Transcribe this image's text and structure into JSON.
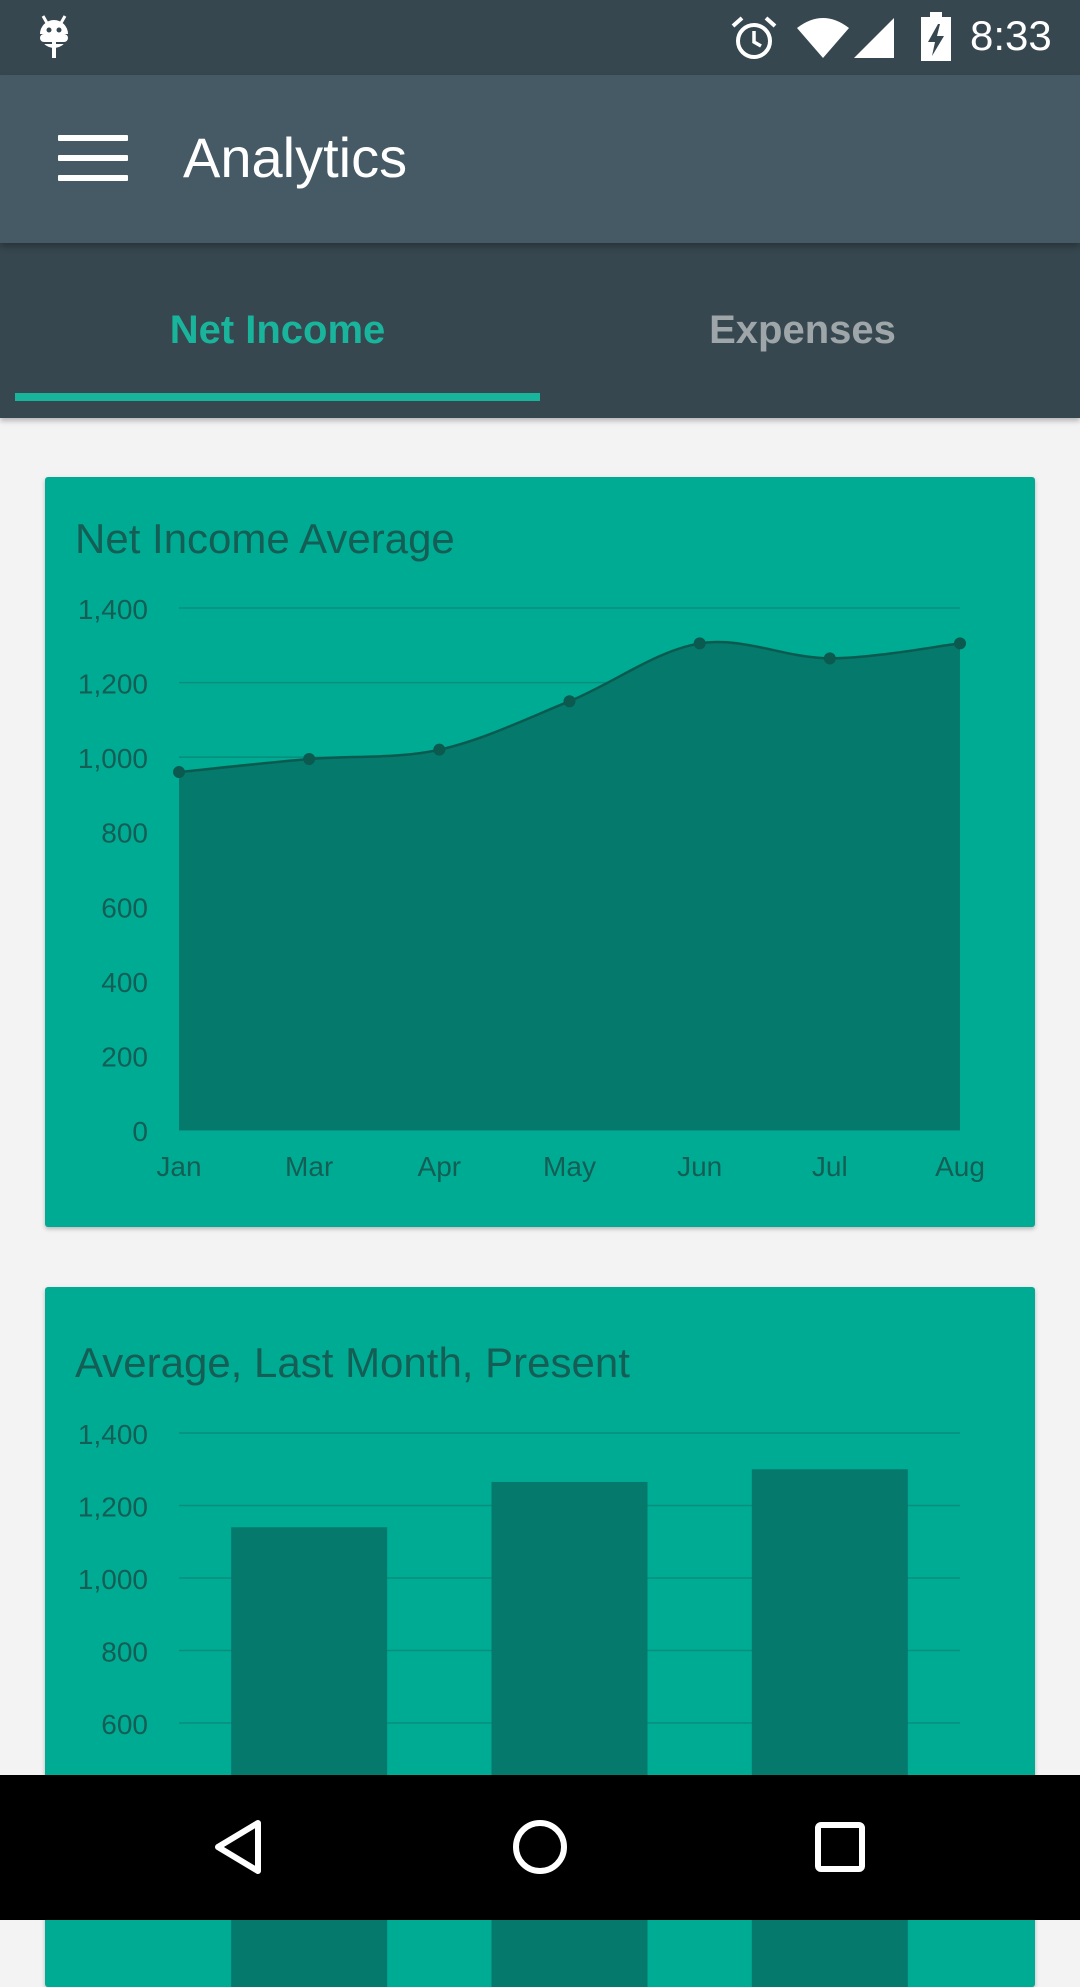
{
  "status_bar": {
    "time": "8:33",
    "icons": [
      "android-icon",
      "alarm-icon",
      "wifi-icon",
      "signal-icon",
      "battery-charging-icon"
    ]
  },
  "app_bar": {
    "title": "Analytics",
    "menu_icon": "menu-icon"
  },
  "tabs": [
    {
      "label": "Net Income",
      "selected": true
    },
    {
      "label": "Expenses",
      "selected": false
    }
  ],
  "colors": {
    "accent": "#19b49c",
    "card_bg": "#00ab93",
    "series_fill": "#04796c",
    "line_stroke": "#0b5a50"
  },
  "cards": [
    {
      "title": "Net Income Average",
      "chart_data": {
        "type": "area",
        "title": "Net Income Average",
        "categories": [
          "Jan",
          "Mar",
          "Apr",
          "May",
          "Jun",
          "Jul",
          "Aug"
        ],
        "values": [
          960,
          995,
          1020,
          1150,
          1305,
          1265,
          1305
        ],
        "y_ticks": [
          "1,400",
          "1,200",
          "1,000",
          "800",
          "600",
          "400",
          "200",
          "0"
        ],
        "ylim": [
          0,
          1400
        ],
        "grid": true,
        "smooth": true
      }
    },
    {
      "title": "Average, Last Month, Present",
      "chart_data": {
        "type": "bar",
        "title": "Average, Last Month, Present",
        "values": [
          1140,
          1265,
          1300
        ],
        "y_ticks": [
          "1,400",
          "1,200",
          "1,000",
          "800",
          "600"
        ],
        "ylim": [
          0,
          1400
        ],
        "grid": true
      }
    }
  ],
  "nav_bar": {
    "icons": [
      "back-icon",
      "home-icon",
      "recents-icon"
    ]
  }
}
